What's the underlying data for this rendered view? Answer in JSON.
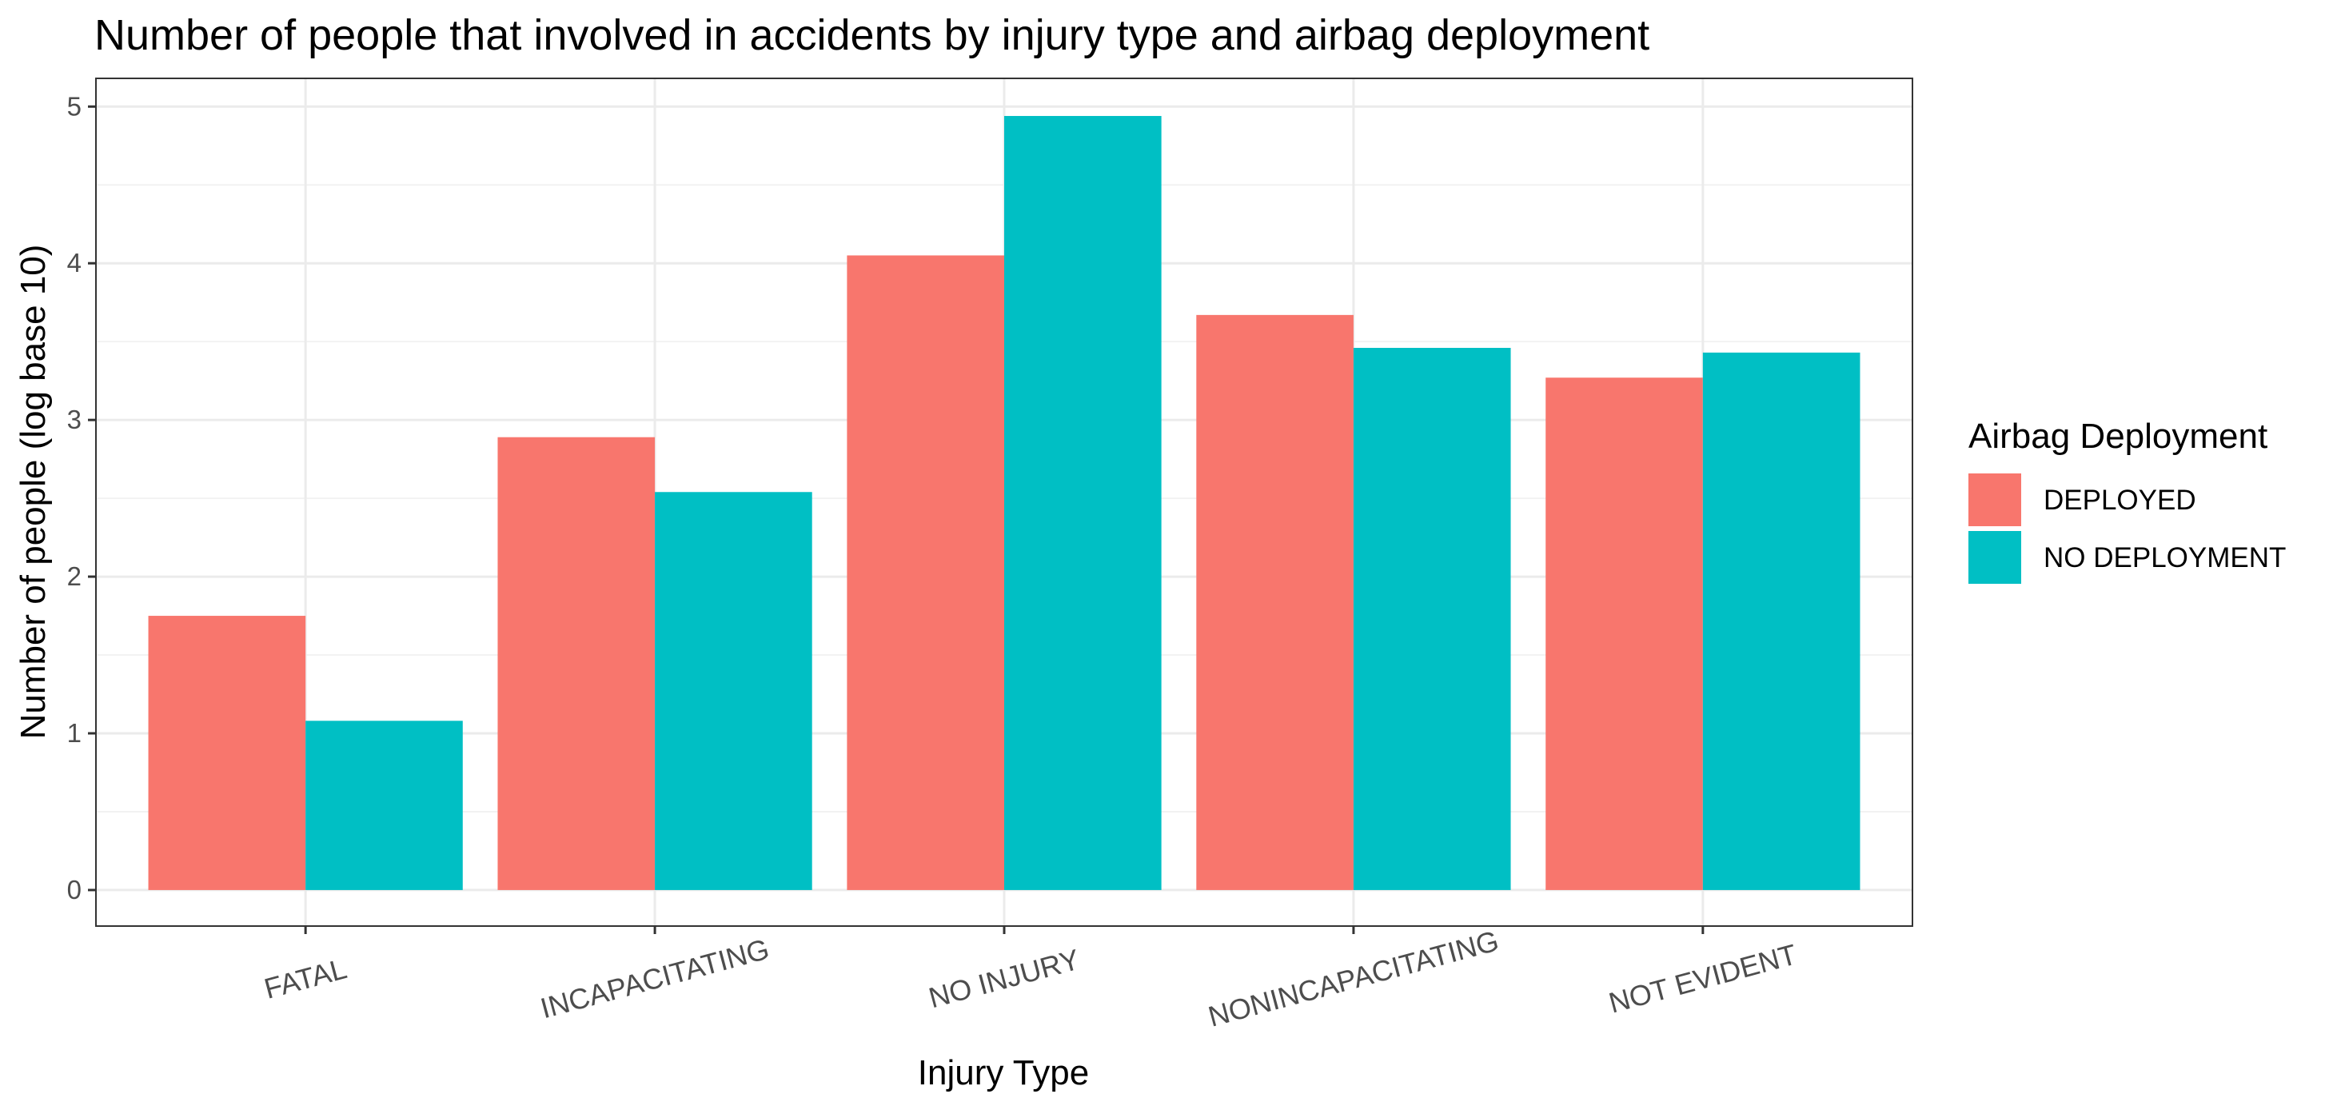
{
  "chart_data": {
    "type": "bar",
    "title": "Number of people that involved in accidents by injury type and airbag deployment",
    "xlabel": "Injury Type",
    "ylabel": "Number of people (log base 10)",
    "categories": [
      "FATAL",
      "INCAPACITATING",
      "NO INJURY",
      "NONINCAPACITATING",
      "NOT EVIDENT"
    ],
    "series": [
      {
        "name": "DEPLOYED",
        "color": "#F8766D",
        "values": [
          1.75,
          2.89,
          4.05,
          3.67,
          3.27
        ]
      },
      {
        "name": "NO DEPLOYMENT",
        "color": "#00BFC4",
        "values": [
          1.08,
          2.54,
          4.94,
          3.46,
          3.43
        ]
      }
    ],
    "ylim": [
      -0.23,
      5.18
    ],
    "yticks": [
      0,
      1,
      2,
      3,
      4,
      5
    ],
    "grid": true,
    "bar_mode": "dodge",
    "legend": {
      "title": "Airbag Deployment",
      "position": "right"
    }
  }
}
